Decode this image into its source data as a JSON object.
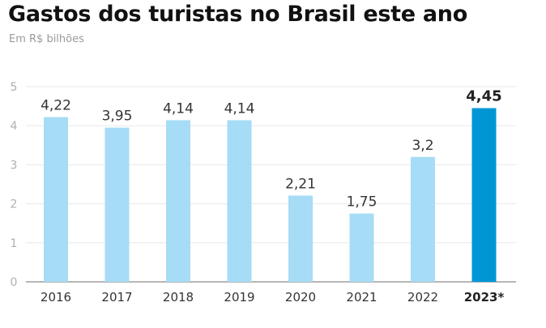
{
  "header": {
    "title": "Gastos dos turistas no Brasil este ano",
    "subtitle": "Em R$ bilhões"
  },
  "colors": {
    "bar": "#a6dcf5",
    "bar_highlight": "#0096d6",
    "grid": "#e8e8e8",
    "baseline": "#8a8a8a"
  },
  "chart_data": {
    "type": "bar",
    "title": "Gastos dos turistas no Brasil este ano",
    "subtitle": "Em R$ bilhões",
    "xlabel": "",
    "ylabel": "",
    "categories": [
      "2016",
      "2017",
      "2018",
      "2019",
      "2020",
      "2021",
      "2022",
      "2023*"
    ],
    "values": [
      4.22,
      3.95,
      4.14,
      4.14,
      2.21,
      1.75,
      3.2,
      4.45
    ],
    "data_labels": [
      "4,22",
      "3,95",
      "4,14",
      "4,14",
      "2,21",
      "1,75",
      "3,2",
      "4,45"
    ],
    "highlight_index": 7,
    "ylim": [
      0,
      5
    ],
    "yticks": [
      "0",
      "1",
      "2",
      "3",
      "4",
      "5"
    ],
    "grid": true,
    "legend": "none"
  }
}
